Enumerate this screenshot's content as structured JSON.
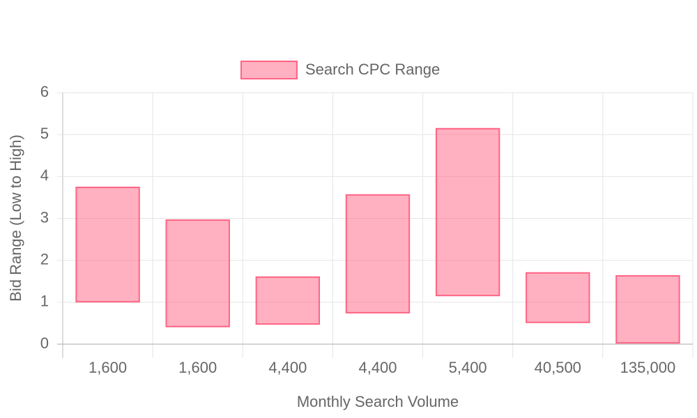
{
  "chart_data": {
    "type": "floating-bar",
    "legend": "top",
    "x_label": "Monthly Search Volume",
    "y_label": "Bid Range (Low to High)",
    "categories": [
      "1,600",
      "1,600",
      "4,400",
      "4,400",
      "5,400",
      "40,500",
      "135,000"
    ],
    "series": [
      {
        "name": "Search CPC Range",
        "color": "#ff6384",
        "values": [
          [
            1.01,
            3.74
          ],
          [
            0.42,
            2.96
          ],
          [
            0.48,
            1.6
          ],
          [
            0.75,
            3.56
          ],
          [
            1.16,
            5.14
          ],
          [
            0.52,
            1.7
          ],
          [
            0.03,
            1.63
          ]
        ]
      }
    ],
    "ylim": [
      0,
      6
    ],
    "yticks": [
      0,
      1,
      2,
      3,
      4,
      5,
      6
    ],
    "grid": true
  }
}
